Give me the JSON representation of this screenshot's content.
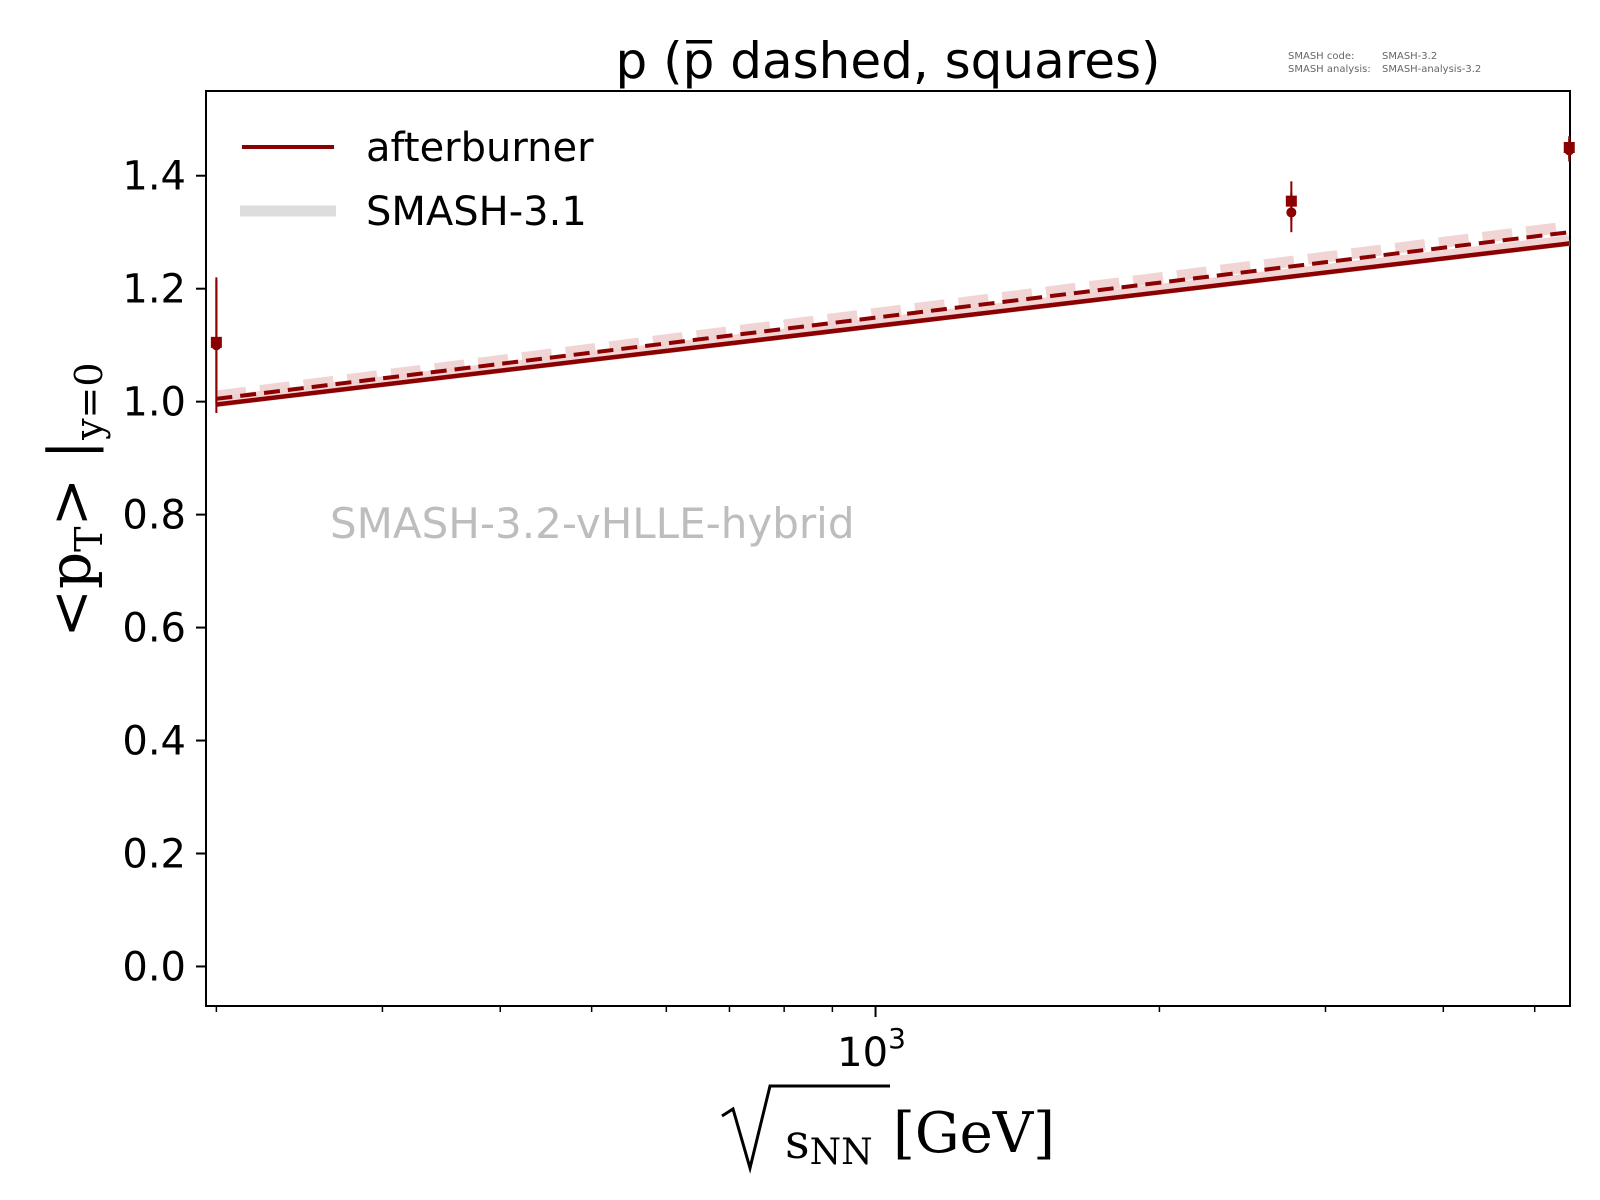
{
  "chart_data": {
    "type": "line",
    "title": "p (p̅ dashed, squares)",
    "xlabel": "[GeV]",
    "xlabel_radicand": "s",
    "xlabel_radicand_sub": "NN",
    "ylabel": "<p",
    "ylabel_sub": "T",
    "ylabel_suffix": "> |",
    "ylabel_sub2": "y=0",
    "x_scale": "log",
    "xlim": [
      195,
      5450
    ],
    "ylim": [
      -0.07,
      1.55
    ],
    "x_tick_label": {
      "value": 1000,
      "base": "10",
      "exponent": "3"
    },
    "y_ticks": [
      0.0,
      0.2,
      0.4,
      0.6,
      0.8,
      1.0,
      1.2,
      1.4
    ],
    "y_tick_labels": [
      "0.0",
      "0.2",
      "0.4",
      "0.6",
      "0.8",
      "1.0",
      "1.2",
      "1.4"
    ],
    "minor_x_ticks": [
      200,
      300,
      400,
      500,
      600,
      700,
      800,
      900,
      2000,
      3000,
      4000,
      5000
    ],
    "grid": false,
    "legend_position": "top-left",
    "legend": [
      {
        "label": "afterburner",
        "style": "solid",
        "color": "#8b0000"
      },
      {
        "label": "SMASH-3.1",
        "style": "solid-thick",
        "color": "#dddddd"
      }
    ],
    "watermark": "SMASH-3.2-vHLLE-hybrid",
    "version_info": [
      {
        "key": "SMASH code:",
        "value": "SMASH-3.2"
      },
      {
        "key": "SMASH analysis:",
        "value": "SMASH-analysis-3.2"
      }
    ],
    "series": [
      {
        "name": "afterburner",
        "kind": "line",
        "style": "solid",
        "color": "#8b0000",
        "x": [
          200,
          5440
        ],
        "y": [
          0.995,
          1.28
        ]
      },
      {
        "kind": "line",
        "style": "dashed",
        "color": "#8b0000",
        "x": [
          200,
          5440
        ],
        "y": [
          1.005,
          1.3
        ]
      },
      {
        "name": "SMASH-3.1",
        "kind": "line",
        "style": "solid-thick",
        "color": "#f0d0d0",
        "x": [
          200,
          5440
        ],
        "y": [
          1.0,
          1.285
        ]
      },
      {
        "kind": "line",
        "style": "dashed-thick",
        "color": "#f0d0d0",
        "x": [
          200,
          5440
        ],
        "y": [
          1.01,
          1.31
        ]
      },
      {
        "kind": "points",
        "marker": "circle",
        "color": "#8b0000",
        "x": [
          200,
          2760,
          5440
        ],
        "y": [
          1.1,
          1.335,
          1.445
        ],
        "yerr": [
          0.12,
          0.035,
          0.02
        ]
      },
      {
        "kind": "points",
        "marker": "square",
        "color": "#8b0000",
        "x": [
          200,
          2760,
          5440
        ],
        "y": [
          1.105,
          1.355,
          1.45
        ],
        "yerr": [
          0.11,
          0.035,
          0.02
        ]
      }
    ]
  }
}
